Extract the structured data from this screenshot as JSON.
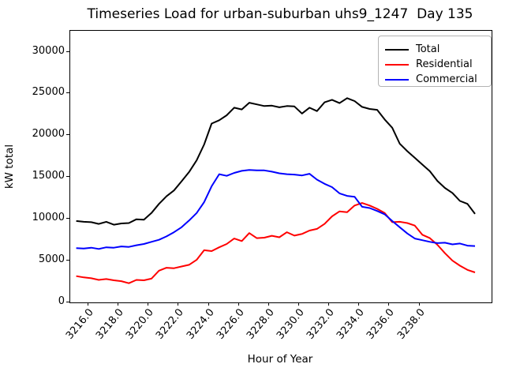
{
  "title": "Timeseries Load for urban-suburban uhs9_1247  Day 135",
  "axes": {
    "xlabel": "Hour of Year",
    "ylabel": "kW total",
    "xticks": [
      "3216.0",
      "3218.0",
      "3220.0",
      "3222.0",
      "3224.0",
      "3226.0",
      "3228.0",
      "3230.0",
      "3232.0",
      "3234.0",
      "3236.0",
      "3238.0"
    ],
    "yticks": [
      "0",
      "5000",
      "10000",
      "15000",
      "20000",
      "25000",
      "30000"
    ]
  },
  "legend": {
    "entries": [
      {
        "label": "Total",
        "color": "#000000"
      },
      {
        "label": "Residential",
        "color": "#ff0000"
      },
      {
        "label": "Commercial",
        "color": "#0000ff"
      }
    ]
  },
  "chart_data": {
    "type": "line",
    "title": "Timeseries Load for urban-suburban uhs9_1247  Day 135",
    "xlabel": "Hour of Year",
    "ylabel": "kW total",
    "xlim": [
      3214.8,
      3242.8
    ],
    "ylim": [
      0,
      32500
    ],
    "xtick_values": [
      3216,
      3218,
      3220,
      3222,
      3224,
      3226,
      3228,
      3230,
      3232,
      3234,
      3236,
      3238
    ],
    "ytick_values": [
      0,
      5000,
      10000,
      15000,
      20000,
      25000,
      30000
    ],
    "grid": false,
    "legend_position": "upper right",
    "x": [
      3215.25,
      3215.75,
      3216.25,
      3216.75,
      3217.25,
      3217.75,
      3218.25,
      3218.75,
      3219.25,
      3219.75,
      3220.25,
      3220.75,
      3221.25,
      3221.75,
      3222.25,
      3222.75,
      3223.25,
      3223.75,
      3224.25,
      3224.75,
      3225.25,
      3225.75,
      3226.25,
      3226.75,
      3227.25,
      3227.75,
      3228.25,
      3228.75,
      3229.25,
      3229.75,
      3230.25,
      3230.75,
      3231.25,
      3231.75,
      3232.25,
      3232.75,
      3233.25,
      3233.75,
      3234.25,
      3234.75,
      3235.25,
      3235.75,
      3236.25,
      3236.75,
      3237.25,
      3237.75,
      3238.25,
      3238.75,
      3239.25,
      3239.75,
      3240.25,
      3240.75,
      3241.25,
      3241.75
    ],
    "series": [
      {
        "name": "Total",
        "color": "#000000",
        "values": [
          9650,
          9550,
          9500,
          9300,
          9550,
          9200,
          9350,
          9400,
          9850,
          9800,
          10600,
          11700,
          12600,
          13300,
          14400,
          15500,
          16900,
          18800,
          21300,
          21700,
          22300,
          23200,
          23000,
          23800,
          23600,
          23400,
          23450,
          23250,
          23400,
          23350,
          22500,
          23200,
          22800,
          23850,
          24150,
          23750,
          24350,
          24000,
          23300,
          23050,
          22950,
          21800,
          20800,
          18900,
          18000,
          17200,
          16400,
          15600,
          14450,
          13600,
          13000,
          12050,
          11700,
          10500
        ]
      },
      {
        "name": "Residential",
        "color": "#ff0000",
        "values": [
          3050,
          2900,
          2800,
          2600,
          2700,
          2550,
          2450,
          2200,
          2600,
          2550,
          2750,
          3700,
          4050,
          4000,
          4200,
          4400,
          5000,
          6150,
          6050,
          6500,
          6900,
          7550,
          7250,
          8200,
          7600,
          7650,
          7880,
          7700,
          8300,
          7900,
          8100,
          8500,
          8700,
          9300,
          10200,
          10800,
          10700,
          11500,
          11800,
          11500,
          11100,
          10600,
          9500,
          9550,
          9400,
          9100,
          8000,
          7600,
          6800,
          5800,
          4900,
          4300,
          3800,
          3500
        ]
      },
      {
        "name": "Commercial",
        "color": "#0000ff",
        "values": [
          6400,
          6350,
          6450,
          6300,
          6500,
          6450,
          6600,
          6550,
          6750,
          6900,
          7150,
          7400,
          7800,
          8300,
          8900,
          9700,
          10600,
          11900,
          13800,
          15250,
          15050,
          15400,
          15650,
          15750,
          15700,
          15700,
          15550,
          15350,
          15250,
          15200,
          15100,
          15300,
          14600,
          14100,
          13700,
          12950,
          12650,
          12550,
          11350,
          11200,
          10850,
          10450,
          9650,
          8900,
          8150,
          7550,
          7350,
          7150,
          7000,
          7050,
          6850,
          6950,
          6700,
          6650
        ]
      }
    ]
  }
}
